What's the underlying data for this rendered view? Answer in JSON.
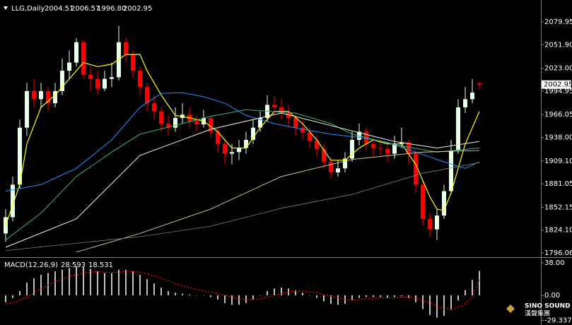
{
  "chart_data": {
    "type": "candlestick",
    "symbol": "LLG,Daily",
    "ohlc_labels": [
      "2004.51",
      "2006.57",
      "1996.80",
      "2002.95"
    ],
    "bull_color": "#e8ffe8",
    "bear_color": "#ff0000",
    "xlim": [
      -0.8,
      75.7
    ],
    "ylim": [
      1792.6,
      2106.9
    ],
    "yticks": [
      {
        "value": 2079.95,
        "label": "2079.95"
      },
      {
        "value": 2051.9,
        "label": "2051.90"
      },
      {
        "value": 2023.0,
        "label": "2023.00"
      },
      {
        "value": 1994.95,
        "label": "1994.95"
      },
      {
        "value": 1966.05,
        "label": "1966.05"
      },
      {
        "value": 1938.0,
        "label": "1938.00"
      },
      {
        "value": 1909.1,
        "label": "1909.10"
      },
      {
        "value": 1881.05,
        "label": "1881.05"
      },
      {
        "value": 1852.15,
        "label": "1852.15"
      },
      {
        "value": 1824.1,
        "label": "1824.10"
      },
      {
        "value": 1796.06,
        "label": "1796.06"
      }
    ],
    "candles": [
      [
        1820,
        1850,
        1810,
        1840
      ],
      [
        1840,
        1890,
        1835,
        1880
      ],
      [
        1880,
        1960,
        1875,
        1950
      ],
      [
        1950,
        2005,
        1940,
        1995
      ],
      [
        1995,
        2010,
        1975,
        1985
      ],
      [
        1985,
        2005,
        1975,
        1995
      ],
      [
        1995,
        2000,
        1970,
        1980
      ],
      [
        1980,
        2005,
        1975,
        1995
      ],
      [
        1995,
        2035,
        1990,
        2020
      ],
      [
        2020,
        2045,
        2010,
        2030
      ],
      [
        2030,
        2060,
        2025,
        2055
      ],
      [
        2055,
        2058,
        2010,
        2015
      ],
      [
        2015,
        2025,
        1995,
        2010
      ],
      [
        2010,
        2020,
        1990,
        1998
      ],
      [
        1998,
        2020,
        1995,
        2010
      ],
      [
        2010,
        2030,
        2000,
        2012
      ],
      [
        2012,
        2075,
        2008,
        2055
      ],
      [
        2055,
        2060,
        2030,
        2040
      ],
      [
        2040,
        2045,
        2012,
        2020
      ],
      [
        2020,
        2025,
        1990,
        2000
      ],
      [
        2000,
        2005,
        1970,
        1980
      ],
      [
        1980,
        1990,
        1960,
        1970
      ],
      [
        1970,
        1975,
        1945,
        1955
      ],
      [
        1955,
        1965,
        1940,
        1950
      ],
      [
        1950,
        1975,
        1945,
        1962
      ],
      [
        1962,
        1980,
        1955,
        1966
      ],
      [
        1966,
        1975,
        1950,
        1958
      ],
      [
        1958,
        1965,
        1945,
        1954
      ],
      [
        1954,
        1972,
        1950,
        1962
      ],
      [
        1962,
        1965,
        1938,
        1945
      ],
      [
        1945,
        1950,
        1920,
        1930
      ],
      [
        1930,
        1935,
        1905,
        1918
      ],
      [
        1918,
        1930,
        1905,
        1920
      ],
      [
        1920,
        1935,
        1910,
        1925
      ],
      [
        1925,
        1945,
        1918,
        1935
      ],
      [
        1935,
        1960,
        1930,
        1950
      ],
      [
        1950,
        1970,
        1945,
        1962
      ],
      [
        1962,
        1990,
        1958,
        1978
      ],
      [
        1978,
        1988,
        1965,
        1975
      ],
      [
        1975,
        1985,
        1960,
        1968
      ],
      [
        1968,
        1978,
        1950,
        1962
      ],
      [
        1962,
        1968,
        1940,
        1950
      ],
      [
        1950,
        1958,
        1935,
        1944
      ],
      [
        1944,
        1950,
        1925,
        1934
      ],
      [
        1934,
        1940,
        1915,
        1924
      ],
      [
        1924,
        1930,
        1900,
        1908
      ],
      [
        1908,
        1912,
        1888,
        1895
      ],
      [
        1895,
        1910,
        1890,
        1900
      ],
      [
        1900,
        1920,
        1895,
        1912
      ],
      [
        1912,
        1945,
        1908,
        1935
      ],
      [
        1935,
        1955,
        1928,
        1945
      ],
      [
        1945,
        1950,
        1922,
        1930
      ],
      [
        1930,
        1938,
        1915,
        1925
      ],
      [
        1925,
        1935,
        1915,
        1924
      ],
      [
        1924,
        1932,
        1908,
        1918
      ],
      [
        1918,
        1940,
        1912,
        1930
      ],
      [
        1930,
        1950,
        1925,
        1932
      ],
      [
        1932,
        1935,
        1905,
        1918
      ],
      [
        1918,
        1922,
        1870,
        1880
      ],
      [
        1880,
        1885,
        1830,
        1838
      ],
      [
        1838,
        1845,
        1815,
        1825
      ],
      [
        1825,
        1850,
        1812,
        1842
      ],
      [
        1842,
        1880,
        1838,
        1872
      ],
      [
        1872,
        1935,
        1868,
        1922
      ],
      [
        1922,
        1985,
        1918,
        1975
      ],
      [
        1975,
        2000,
        1968,
        1985
      ],
      [
        1985,
        2010,
        1980,
        1993
      ],
      [
        2004.51,
        2006.57,
        1996.8,
        2002.95
      ]
    ],
    "series": [
      {
        "color": "#ffff00",
        "width": 1.2,
        "x": [
          0,
          2,
          3,
          5,
          7,
          9,
          11,
          13,
          15,
          17,
          19,
          20,
          22,
          24,
          26,
          28,
          30,
          32,
          34,
          36,
          38,
          40,
          42,
          44,
          46,
          48,
          50,
          52,
          54,
          56,
          58,
          60,
          61,
          62,
          63,
          64,
          65,
          66,
          67
        ],
        "values": [
          1830,
          1880,
          1930,
          1975,
          1990,
          2010,
          2030,
          2025,
          2028,
          2040,
          2040,
          2020,
          1990,
          1965,
          1962,
          1958,
          1945,
          1925,
          1925,
          1950,
          1970,
          1970,
          1955,
          1935,
          1910,
          1910,
          1925,
          1935,
          1930,
          1930,
          1905,
          1865,
          1850,
          1848,
          1870,
          1900,
          1930,
          1950,
          1970
        ]
      },
      {
        "color": "#1e90ff",
        "width": 1,
        "x": [
          0,
          5,
          10,
          15,
          19,
          22,
          25,
          28,
          31,
          34,
          38,
          42,
          46,
          50,
          54,
          58,
          62,
          65,
          67
        ],
        "values": [
          1872,
          1880,
          1900,
          1935,
          1975,
          1992,
          1993,
          1988,
          1980,
          1965,
          1955,
          1948,
          1942,
          1938,
          1932,
          1920,
          1908,
          1900,
          1908
        ]
      },
      {
        "color": "#3cb371",
        "width": 1,
        "x": [
          0,
          5,
          10,
          15,
          19,
          25,
          29,
          34,
          41,
          46,
          49,
          55,
          61,
          67
        ],
        "values": [
          1812,
          1845,
          1890,
          1920,
          1942,
          1955,
          1964,
          1972,
          1968,
          1955,
          1942,
          1929,
          1920,
          1925
        ]
      },
      {
        "color": "#f5f5dc",
        "width": 1,
        "x": [
          0,
          10,
          19,
          29,
          39,
          49,
          55,
          61,
          67
        ],
        "values": [
          1803,
          1838,
          1916,
          1948,
          1968,
          1946,
          1933,
          1925,
          1933
        ]
      },
      {
        "color": "#eee8aa",
        "width": 0.8,
        "x": [
          10,
          19,
          29,
          39,
          49,
          59,
          67
        ],
        "values": [
          1797,
          1820,
          1850,
          1890,
          1911,
          1920,
          1922
        ]
      },
      {
        "color": "#808080",
        "width": 0.8,
        "x": [
          0,
          19,
          29,
          39,
          49,
          59,
          67
        ],
        "values": [
          1799,
          1816,
          1829,
          1851,
          1868,
          1894,
          1907
        ]
      }
    ],
    "macd": {
      "name": "MACD(12,26,9)",
      "ylim": [
        -34.7,
        43
      ],
      "yticks": [
        {
          "value": 38.0,
          "label": "38.00"
        },
        {
          "value": 0,
          "label": "0.00"
        },
        -29.337
      ],
      "bar_color": "#c0c0c0",
      "signal_color": "#ff0000",
      "values": [
        -8,
        -3,
        5,
        15,
        20,
        24,
        26,
        28,
        30,
        32,
        34,
        33,
        31,
        28,
        26,
        26,
        30,
        30,
        28,
        24,
        19,
        14,
        9,
        5,
        3,
        2,
        1,
        0,
        0,
        -2,
        -5,
        -9,
        -11,
        -11,
        -9,
        -5,
        0,
        5,
        8,
        9,
        8,
        6,
        3,
        0,
        -3,
        -7,
        -10,
        -11,
        -10,
        -6,
        -3,
        -2,
        -2,
        -2,
        -3,
        -2,
        -1,
        -3,
        -8,
        -16,
        -23,
        -26,
        -24,
        -17,
        -6,
        6,
        18,
        28.593
      ],
      "signal": [
        -10,
        -9,
        -6,
        -2,
        3,
        8,
        12,
        16,
        19,
        22,
        24,
        26,
        27,
        28,
        27,
        27,
        27,
        28,
        28,
        27,
        25,
        23,
        20,
        17,
        14,
        11,
        9,
        7,
        5,
        4,
        2,
        0,
        -2,
        -4,
        -5,
        -5,
        -4,
        -2,
        0,
        2,
        4,
        5,
        5,
        4,
        3,
        1,
        -1,
        -3,
        -5,
        -5,
        -5,
        -4,
        -4,
        -3,
        -3,
        -3,
        -2,
        -2,
        -3,
        -6,
        -9,
        -13,
        -16,
        -16,
        -14,
        -10,
        -2,
        18.531
      ]
    },
    "logo": {
      "name": "SINO SOUND",
      "sub": "漢聲集團"
    }
  }
}
